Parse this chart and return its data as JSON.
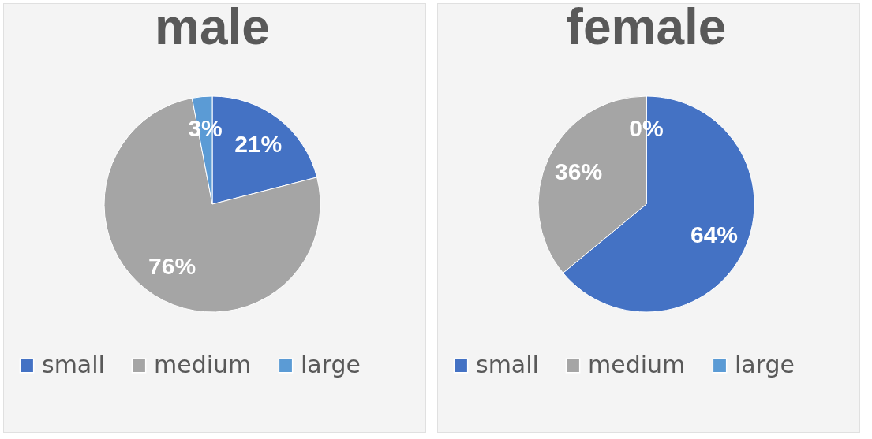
{
  "chart_data": [
    {
      "type": "pie",
      "title": "male",
      "categories": [
        "small",
        "medium",
        "large"
      ],
      "values": [
        21,
        76,
        3
      ],
      "colors": [
        "#4472c4",
        "#a5a5a5",
        "#5b9bd5"
      ],
      "value_labels": [
        "21%",
        "76%",
        "3%"
      ],
      "legend": "bottom"
    },
    {
      "type": "pie",
      "title": "female",
      "categories": [
        "small",
        "medium",
        "large"
      ],
      "values": [
        64,
        36,
        0
      ],
      "colors": [
        "#4472c4",
        "#a5a5a5",
        "#5b9bd5"
      ],
      "value_labels": [
        "64%",
        "36%",
        "0%"
      ],
      "legend": "bottom"
    }
  ]
}
